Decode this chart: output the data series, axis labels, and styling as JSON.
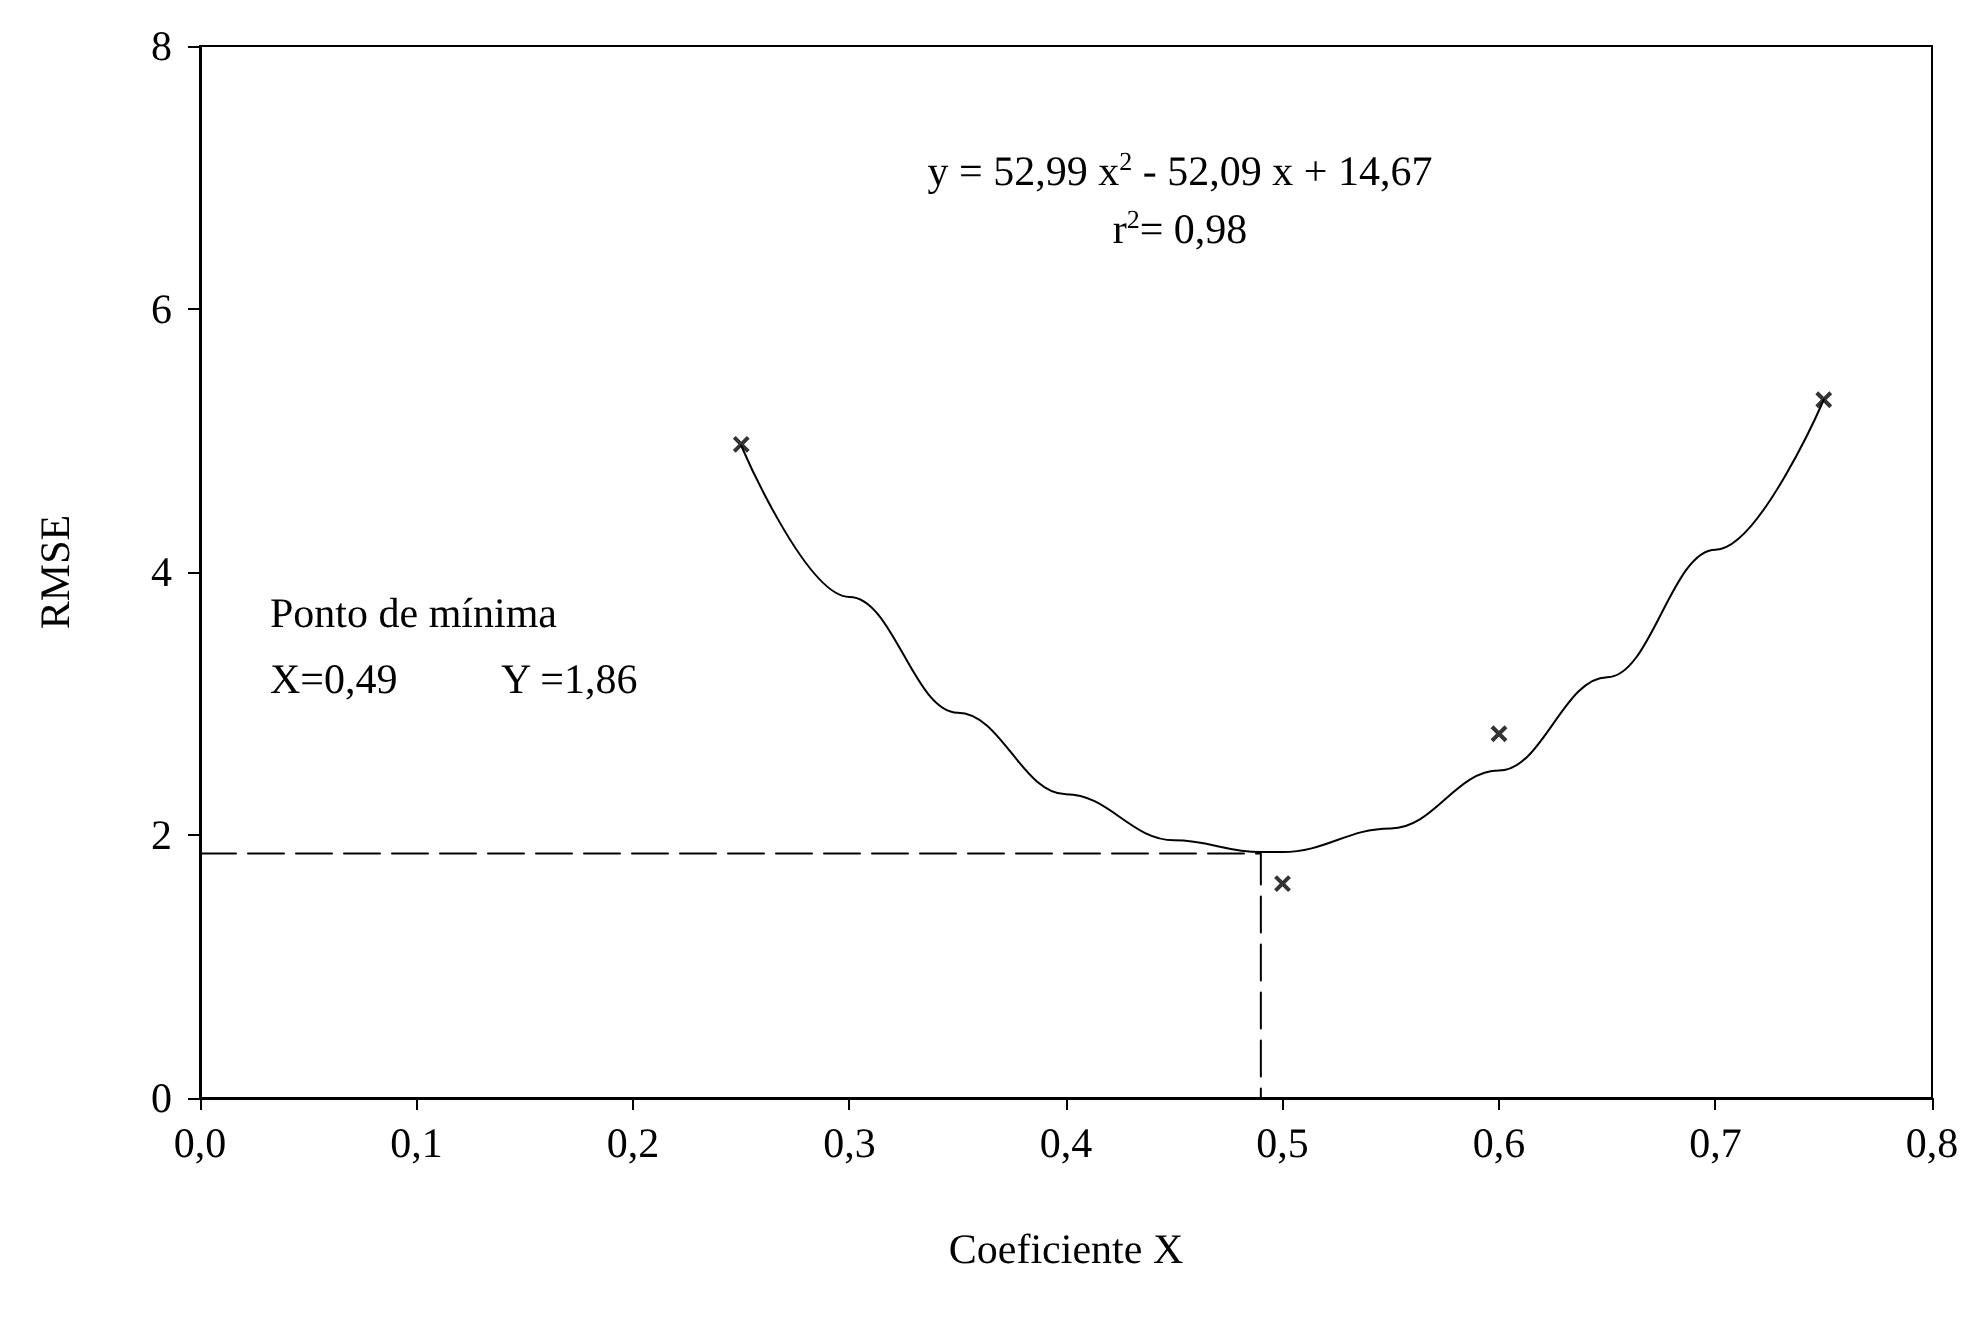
{
  "chart_data": {
    "type": "scatter",
    "xlabel": "Coeficiente X",
    "ylabel": "RMSE",
    "annotations": [
      "y = 52,99 x$^{2}$ - 52,09 x + 14,67",
      "r$^{2}$= 0,98",
      "Ponto de mínima",
      "X=0,49          Y =1,86"
    ],
    "series": [
      {
        "color": "#000000",
        "marker": "cross",
        "x": [
          0.25,
          0.5,
          0.6,
          0.75
        ],
        "values": [
          4.97,
          1.63,
          2.77,
          5.31
        ]
      },
      {
        "type": "line",
        "color": "#000000",
        "marker": "none",
        "line_style": "solid",
        "x": [
          0.25,
          0.3,
          0.35,
          0.4,
          0.45,
          0.49,
          0.5,
          0.55,
          0.6,
          0.65,
          0.7,
          0.75
        ],
        "values": [
          4.96,
          3.81,
          2.93,
          2.31,
          1.96,
          1.87,
          1.87,
          2.05,
          2.49,
          3.2,
          4.17,
          5.31
        ]
      },
      {
        "type": "line",
        "color": "#000000",
        "marker": "none",
        "line_style": "dashed",
        "x": [
          0,
          0.49,
          0.49
        ],
        "values": [
          1.86,
          1.86,
          0
        ]
      }
    ],
    "xlim": [
      0,
      0.8
    ],
    "xticks": [
      {
        "value": 0,
        "label": "0,0"
      },
      {
        "value": 0.1,
        "label": "0,1"
      },
      {
        "value": 0.2,
        "label": "0,2"
      },
      {
        "value": 0.3,
        "label": "0,3"
      },
      {
        "value": 0.4,
        "label": "0,4"
      },
      {
        "value": 0.5,
        "label": "0,5"
      },
      {
        "value": 0.6,
        "label": "0,6"
      },
      {
        "value": 0.7,
        "label": "0,7"
      },
      {
        "value": 0.8,
        "label": "0,8"
      }
    ],
    "ylim": [
      0,
      8
    ],
    "yticks": [
      0,
      2,
      4,
      6,
      8
    ],
    "grid": false
  }
}
